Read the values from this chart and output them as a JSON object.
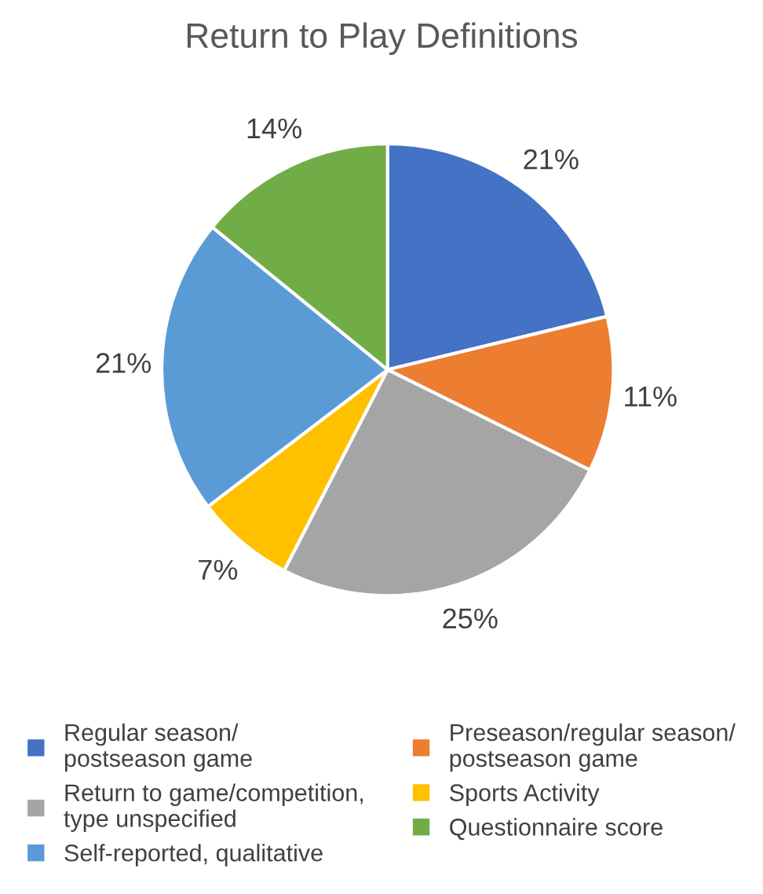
{
  "chart_data": {
    "type": "pie",
    "title": "Return to Play Definitions",
    "categories": [
      "Regular season/\npostseason game",
      "Preseason/regular season/\npostseason game",
      "Return to game/competition,\ntype unspecified",
      "Sports Activity",
      "Self-reported, qualitative",
      "Questionnaire score"
    ],
    "values": [
      21,
      11,
      25,
      7,
      21,
      14
    ],
    "colors": [
      "#4472c4",
      "#ed7d31",
      "#a5a5a5",
      "#ffc000",
      "#5b9bd5",
      "#70ad47"
    ],
    "value_labels": [
      "21%",
      "11%",
      "25%",
      "7%",
      "21%",
      "14%"
    ],
    "legend": "bottom"
  }
}
